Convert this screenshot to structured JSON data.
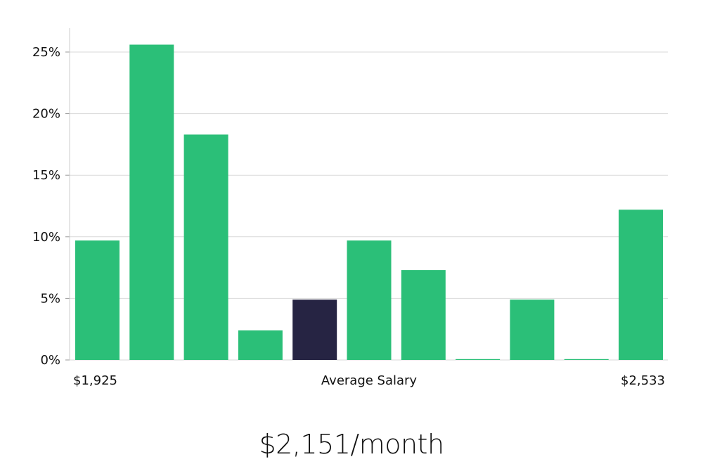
{
  "chart_data": {
    "type": "bar",
    "xlabel": "Average Salary",
    "x_start_label": "$1,925",
    "x_end_label": "$2,533",
    "yticks": [
      "0%",
      "5%",
      "10%",
      "15%",
      "20%",
      "25%"
    ],
    "ylim": [
      0,
      26.9
    ],
    "grid": true,
    "values": [
      9.7,
      25.6,
      18.3,
      2.4,
      4.9,
      9.7,
      7.3,
      0,
      4.9,
      0,
      12.2
    ],
    "highlight_index": 4,
    "colors": {
      "bar": "#2bbf78",
      "highlight": "#262443",
      "grid": "#d9d9d9",
      "axis": "#cccccc"
    }
  },
  "headline": "$2,151/month"
}
